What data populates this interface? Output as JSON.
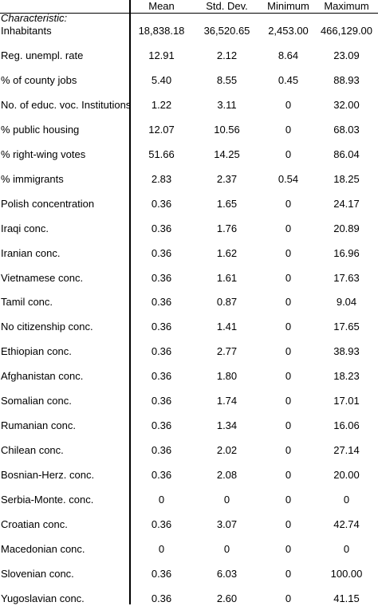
{
  "columns": [
    "Mean",
    "Std. Dev.",
    "Minimum",
    "Maximum"
  ],
  "section_label": "Characteristic:",
  "rows": [
    {
      "label": "Inhabitants",
      "values": [
        "18,838.18",
        "36,520.65",
        "2,453.00",
        "466,129.00"
      ]
    },
    {
      "label": "Reg. unempl. rate",
      "values": [
        "12.91",
        "2.12",
        "8.64",
        "23.09"
      ]
    },
    {
      "label": "% of county jobs",
      "values": [
        "5.40",
        "8.55",
        "0.45",
        "88.93"
      ]
    },
    {
      "label": "No. of educ. voc. Institutions",
      "values": [
        "1.22",
        "3.11",
        "0",
        "32.00"
      ]
    },
    {
      "label": "% public housing",
      "values": [
        "12.07",
        "10.56",
        "0",
        "68.03"
      ]
    },
    {
      "label": "% right-wing votes",
      "values": [
        "51.66",
        "14.25",
        "0",
        "86.04"
      ]
    },
    {
      "label": "% immigrants",
      "values": [
        "2.83",
        "2.37",
        "0.54",
        "18.25"
      ]
    },
    {
      "label": "Polish concentration",
      "values": [
        "0.36",
        "1.65",
        "0",
        "24.17"
      ]
    },
    {
      "label": "Iraqi conc.",
      "values": [
        "0.36",
        "1.76",
        "0",
        "20.89"
      ]
    },
    {
      "label": "Iranian conc.",
      "values": [
        "0.36",
        "1.62",
        "0",
        "16.96"
      ]
    },
    {
      "label": "Vietnamese conc.",
      "values": [
        "0.36",
        "1.61",
        "0",
        "17.63"
      ]
    },
    {
      "label": "Tamil conc.",
      "values": [
        "0.36",
        "0.87",
        "0",
        "9.04"
      ]
    },
    {
      "label": "No citizenship conc.",
      "values": [
        "0.36",
        "1.41",
        "0",
        "17.65"
      ]
    },
    {
      "label": "Ethiopian conc.",
      "values": [
        "0.36",
        "2.77",
        "0",
        "38.93"
      ]
    },
    {
      "label": "Afghanistan conc.",
      "values": [
        "0.36",
        "1.80",
        "0",
        "18.23"
      ]
    },
    {
      "label": "Somalian conc.",
      "values": [
        "0.36",
        "1.74",
        "0",
        "17.01"
      ]
    },
    {
      "label": "Rumanian conc.",
      "values": [
        "0.36",
        "1.34",
        "0",
        "16.06"
      ]
    },
    {
      "label": "Chilean conc.",
      "values": [
        "0.36",
        "2.02",
        "0",
        "27.14"
      ]
    },
    {
      "label": "Bosnian-Herz. conc.",
      "values": [
        "0.36",
        "2.08",
        "0",
        "20.00"
      ]
    },
    {
      "label": "Serbia-Monte. conc.",
      "values": [
        "0",
        "0",
        "0",
        "0"
      ]
    },
    {
      "label": "Croatian conc.",
      "values": [
        "0.36",
        "3.07",
        "0",
        "42.74"
      ]
    },
    {
      "label": "Macedonian conc.",
      "values": [
        "0",
        "0",
        "0",
        "0"
      ]
    },
    {
      "label": "Slovenian conc.",
      "values": [
        "0.36",
        "6.03",
        "0",
        "100.00"
      ]
    },
    {
      "label": "Yugoslavian conc.",
      "values": [
        "0.36",
        "2.60",
        "0",
        "41.15"
      ]
    }
  ]
}
